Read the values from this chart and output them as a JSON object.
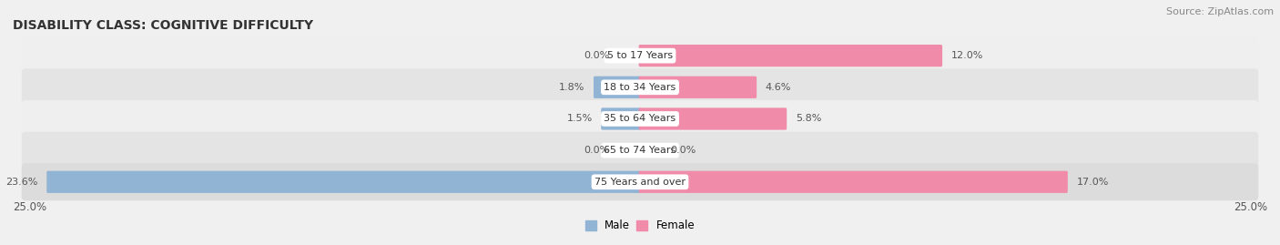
{
  "title": "DISABILITY CLASS: COGNITIVE DIFFICULTY",
  "source": "Source: ZipAtlas.com",
  "categories": [
    "5 to 17 Years",
    "18 to 34 Years",
    "35 to 64 Years",
    "65 to 74 Years",
    "75 Years and over"
  ],
  "male_values": [
    0.0,
    1.8,
    1.5,
    0.0,
    23.6
  ],
  "female_values": [
    12.0,
    4.6,
    5.8,
    0.0,
    17.0
  ],
  "male_color": "#92b4d4",
  "female_color": "#f08caa",
  "male_label": "Male",
  "female_label": "Female",
  "xlim": 25.0,
  "axis_label_left": "25.0%",
  "axis_label_right": "25.0%",
  "row_bg_colors": [
    "#efefef",
    "#e4e4e4",
    "#efefef",
    "#e4e4e4",
    "#dcdcdc"
  ],
  "last_row_bg": "#dcdcdc",
  "title_fontsize": 10,
  "source_fontsize": 8,
  "label_fontsize": 8.5,
  "value_fontsize": 8,
  "category_fontsize": 8
}
